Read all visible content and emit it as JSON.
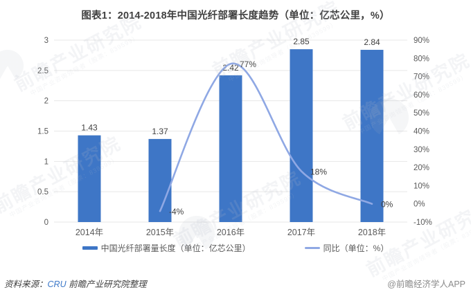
{
  "title": "图表1：2014-2018年中国光纤部署长度趋势（单位：亿芯公里，%）",
  "chart_data": {
    "type": "bar",
    "subtype": "bar+line combo, dual axis",
    "title": "图表1：2014-2018年中国光纤部署长度趋势（单位：亿芯公里，%）",
    "categories": [
      "2014年",
      "2015年",
      "2016年",
      "2017年",
      "2018年"
    ],
    "series": [
      {
        "name": "中国光纤部署量长度（单位：亿芯公里）",
        "type": "bar",
        "axis": "left",
        "values": [
          1.43,
          1.37,
          2.42,
          2.85,
          2.84
        ],
        "labels": [
          "1.43",
          "1.37",
          "2.42",
          "2.85",
          "2.84"
        ],
        "color": "#3E76C6"
      },
      {
        "name": "同比（单位：%）",
        "type": "line",
        "axis": "right",
        "values": [
          null,
          -4,
          77,
          18,
          0
        ],
        "labels": [
          null,
          "-4%",
          "77%",
          "18%",
          "0%"
        ],
        "color": "#8FA8E4"
      }
    ],
    "left_axis": {
      "min": 0,
      "max": 3,
      "step": 0.5,
      "ticks": [
        "0",
        "0.5",
        "1",
        "1.5",
        "2",
        "2.5",
        "3"
      ]
    },
    "right_axis": {
      "min": -10,
      "max": 90,
      "step": 10,
      "ticks": [
        "-10%",
        "0%",
        "10%",
        "20%",
        "30%",
        "40%",
        "50%",
        "60%",
        "70%",
        "80%",
        "90%"
      ]
    },
    "grid": true,
    "legend_position": "bottom"
  },
  "legend": {
    "items": [
      {
        "label": "中国光纤部署量长度（单位：亿芯公里）",
        "color": "#3E76C6",
        "marker": "bar"
      },
      {
        "label": "同比（单位：%）",
        "color": "#8FA8E4",
        "marker": "line"
      }
    ]
  },
  "footer": {
    "source_prefix": "资料来源：",
    "source_org": "CRU",
    "source_rest": " 前瞻产业研究院整理",
    "credit": "@前瞻经济学人APP"
  },
  "watermark": {
    "text": "前瞻产业研究院",
    "subtext": "中国产业咨询领导者（股票：839599）"
  },
  "colors": {
    "bar": "#3E76C6",
    "line": "#8FA8E4",
    "grid": "#E7E7E7",
    "axis_text": "#595959",
    "label_text": "#404040",
    "title_text": "#404040",
    "source_link": "#3C78C8",
    "credit_text": "#8A8A8A"
  }
}
